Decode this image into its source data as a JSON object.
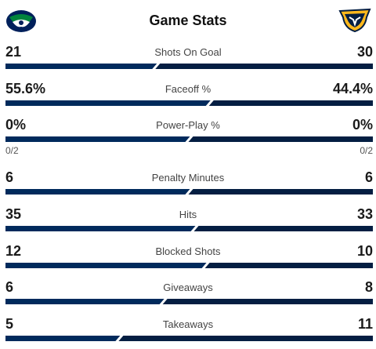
{
  "header": {
    "title": "Game Stats",
    "home_logo": "canucks-logo",
    "away_logo": "predators-logo"
  },
  "colors": {
    "home": "#002a5c",
    "away": "#041e42",
    "gap": "#ffffff"
  },
  "stats": [
    {
      "label": "Shots On Goal",
      "home": "21",
      "away": "30",
      "home_share": 0.41
    },
    {
      "label": "Faceoff %",
      "home": "55.6%",
      "away": "44.4%",
      "home_share": 0.556
    },
    {
      "label": "Power-Play %",
      "home": "0%",
      "away": "0%",
      "home_share": 0.5,
      "home_sub": "0/2",
      "away_sub": "0/2"
    },
    {
      "label": "Penalty Minutes",
      "home": "6",
      "away": "6",
      "home_share": 0.5
    },
    {
      "label": "Hits",
      "home": "35",
      "away": "33",
      "home_share": 0.515
    },
    {
      "label": "Blocked Shots",
      "home": "12",
      "away": "10",
      "home_share": 0.545
    },
    {
      "label": "Giveaways",
      "home": "6",
      "away": "8",
      "home_share": 0.43
    },
    {
      "label": "Takeaways",
      "home": "5",
      "away": "11",
      "home_share": 0.31
    }
  ]
}
